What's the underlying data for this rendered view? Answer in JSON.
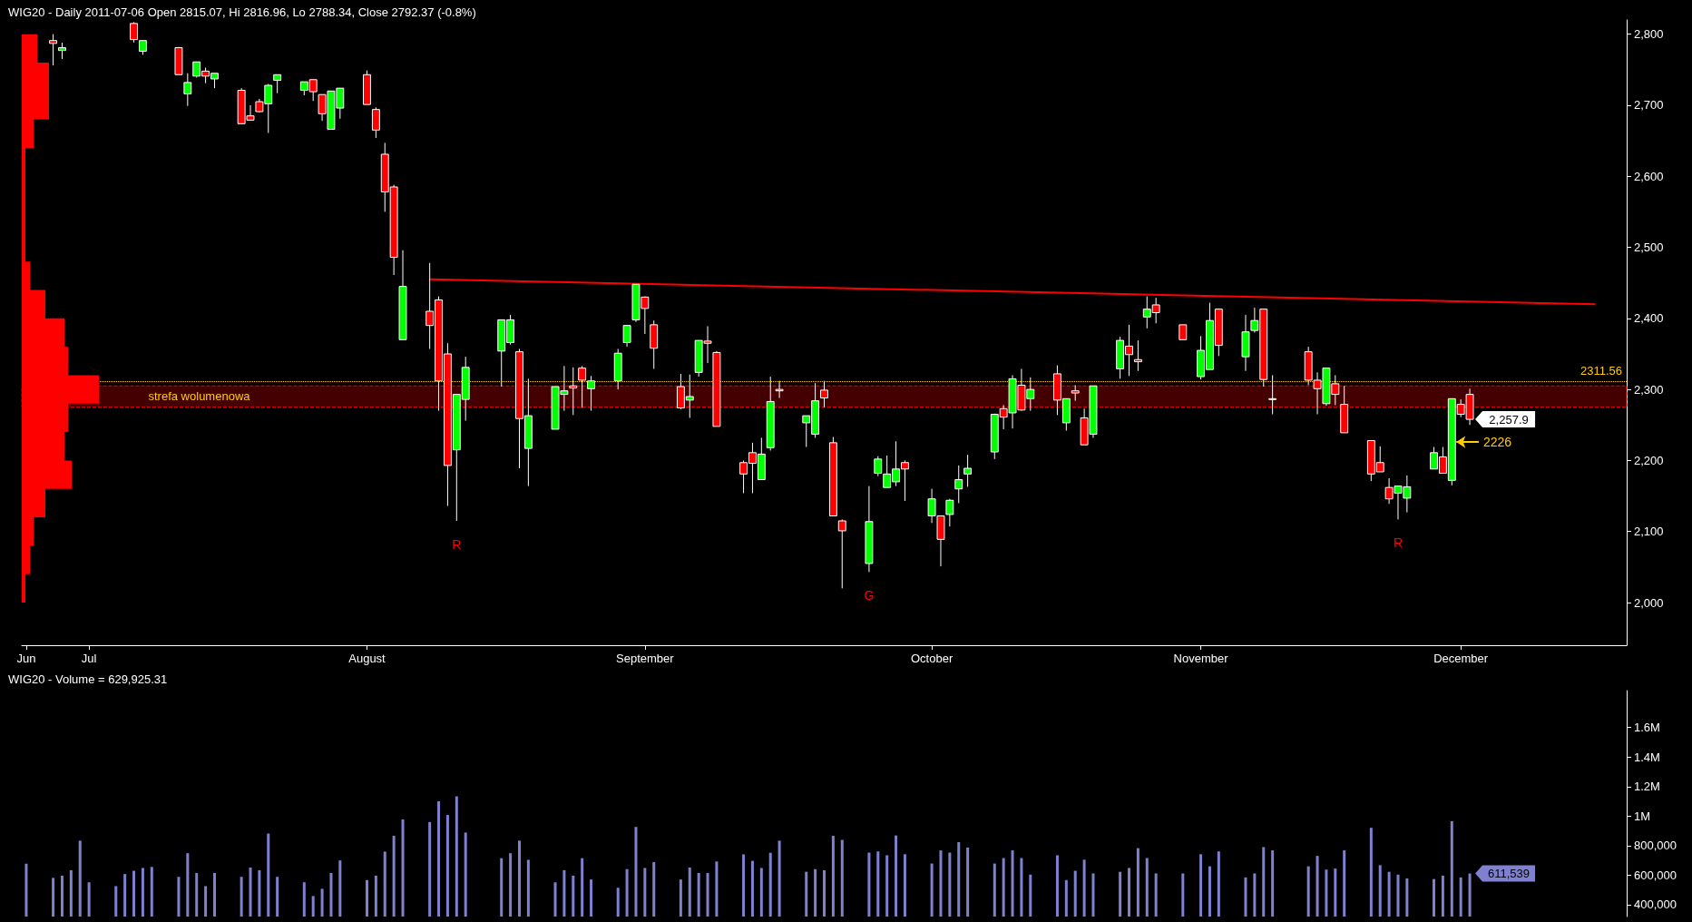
{
  "chart_data": [
    {
      "type": "candlestick",
      "title": "WIG20 - Daily 2011-07-06 Open 2815.07, Hi 2816.96, Lo 2788.34, Close 2792.37 (-0.8%)",
      "x": [
        "2011-06-27",
        "2011-06-28",
        "2011-07-06",
        "2011-07-07",
        "2011-07-11",
        "2011-07-12",
        "2011-07-13",
        "2011-07-14",
        "2011-07-15",
        "2011-07-18",
        "2011-07-19",
        "2011-07-20",
        "2011-07-21",
        "2011-07-22",
        "2011-07-25",
        "2011-07-26",
        "2011-07-27",
        "2011-07-28",
        "2011-07-29",
        "2011-08-01",
        "2011-08-02",
        "2011-08-03",
        "2011-08-04",
        "2011-08-05",
        "2011-08-08",
        "2011-08-09",
        "2011-08-10",
        "2011-08-11",
        "2011-08-12",
        "2011-08-16",
        "2011-08-17",
        "2011-08-18",
        "2011-08-19",
        "2011-08-22",
        "2011-08-23",
        "2011-08-24",
        "2011-08-25",
        "2011-08-26",
        "2011-08-29",
        "2011-08-30",
        "2011-08-31",
        "2011-09-01",
        "2011-09-02",
        "2011-09-05",
        "2011-09-06",
        "2011-09-07",
        "2011-09-08",
        "2011-09-09",
        "2011-09-12",
        "2011-09-13",
        "2011-09-14",
        "2011-09-15",
        "2011-09-16",
        "2011-09-19",
        "2011-09-20",
        "2011-09-21",
        "2011-09-22",
        "2011-09-23",
        "2011-09-26",
        "2011-09-27",
        "2011-09-28",
        "2011-09-29",
        "2011-09-30",
        "2011-10-03",
        "2011-10-04",
        "2011-10-05",
        "2011-10-06",
        "2011-10-07",
        "2011-10-10",
        "2011-10-11",
        "2011-10-12",
        "2011-10-13",
        "2011-10-14",
        "2011-10-17",
        "2011-10-18",
        "2011-10-19",
        "2011-10-20",
        "2011-10-21",
        "2011-10-24",
        "2011-10-25",
        "2011-10-26",
        "2011-10-27",
        "2011-10-28",
        "2011-10-31",
        "2011-11-02",
        "2011-11-03",
        "2011-11-04",
        "2011-11-07",
        "2011-11-08",
        "2011-11-09",
        "2011-11-10",
        "2011-11-14",
        "2011-11-15",
        "2011-11-16",
        "2011-11-17",
        "2011-11-18",
        "2011-11-21",
        "2011-11-22",
        "2011-11-23",
        "2011-11-24",
        "2011-11-25",
        "2011-11-28",
        "2011-11-29",
        "2011-11-30",
        "2011-12-01",
        "2011-12-02"
      ],
      "xlim": [
        "2011-06-24",
        "2011-12-19"
      ],
      "xticks": [
        {
          "value": "2011-06-24",
          "label": "Jun"
        },
        {
          "value": "2011-07-01",
          "label": "Jul"
        },
        {
          "value": "2011-08-01",
          "label": "August"
        },
        {
          "value": "2011-09-01",
          "label": "September"
        },
        {
          "value": "2011-10-03",
          "label": "October"
        },
        {
          "value": "2011-11-02",
          "label": "November"
        },
        {
          "value": "2011-12-01",
          "label": "December"
        }
      ],
      "ylim": [
        1940,
        2820
      ],
      "yticks": [
        {
          "value": 2000,
          "label": "2,000"
        },
        {
          "value": 2100,
          "label": "2,100"
        },
        {
          "value": 2200,
          "label": "2,200"
        },
        {
          "value": 2300,
          "label": "2,300"
        },
        {
          "value": 2400,
          "label": "2,400"
        },
        {
          "value": 2500,
          "label": "2,500"
        },
        {
          "value": 2600,
          "label": "2,600"
        },
        {
          "value": 2700,
          "label": "2,700"
        },
        {
          "value": 2800,
          "label": "2,800"
        }
      ],
      "series": [
        {
          "type": "candlestick",
          "ohlc": [
            [
              2791,
              2800,
              2756,
              2787
            ],
            [
              2777,
              2788,
              2765,
              2781
            ],
            [
              2815.07,
              2816.96,
              2788.34,
              2792.37
            ],
            [
              2776,
              2791,
              2771,
              2791
            ],
            [
              2781,
              2782,
              2743,
              2743
            ],
            [
              2716,
              2745,
              2699,
              2732
            ],
            [
              2741,
              2761,
              2739,
              2761
            ],
            [
              2748,
              2753,
              2731,
              2741
            ],
            [
              2737,
              2745,
              2724,
              2745
            ],
            [
              2721,
              2724,
              2674,
              2674
            ],
            [
              2685,
              2700,
              2679,
              2679
            ],
            [
              2705,
              2709,
              2690,
              2691
            ],
            [
              2702,
              2730,
              2661,
              2728
            ],
            [
              2735,
              2743,
              2717,
              2743
            ],
            [
              2721,
              2733,
              2714,
              2733
            ],
            [
              2736,
              2736,
              2706,
              2719
            ],
            [
              2715,
              2715,
              2678,
              2688
            ],
            [
              2666,
              2720,
              2666,
              2720
            ],
            [
              2696,
              2724,
              2681,
              2724
            ],
            [
              2743,
              2749,
              2701,
              2701
            ],
            [
              2694,
              2697,
              2654,
              2665
            ],
            [
              2631,
              2647,
              2550,
              2578
            ],
            [
              2585,
              2588,
              2461,
              2486
            ],
            [
              2370,
              2496,
              2370,
              2445
            ],
            [
              2410,
              2478,
              2357,
              2390
            ],
            [
              2426,
              2431,
              2270,
              2312
            ],
            [
              2350,
              2365,
              2136,
              2193
            ],
            [
              2215,
              2293,
              2115,
              2293
            ],
            [
              2286,
              2346,
              2256,
              2331
            ],
            [
              2354,
              2398,
              2304,
              2398
            ],
            [
              2366,
              2405,
              2363,
              2398
            ],
            [
              2353,
              2357,
              2189,
              2259
            ],
            [
              2217,
              2315,
              2164,
              2263
            ],
            [
              2244,
              2304,
              2244,
              2304
            ],
            [
              2293,
              2333,
              2270,
              2298
            ],
            [
              2305,
              2331,
              2264,
              2302
            ],
            [
              2330,
              2333,
              2274,
              2313
            ],
            [
              2301,
              2319,
              2270,
              2312
            ],
            [
              2312,
              2357,
              2300,
              2351
            ],
            [
              2366,
              2390,
              2360,
              2390
            ],
            [
              2398,
              2448,
              2395,
              2448
            ],
            [
              2430,
              2431,
              2378,
              2414
            ],
            [
              2391,
              2397,
              2329,
              2358
            ],
            [
              2304,
              2322,
              2272,
              2274
            ],
            [
              2285,
              2321,
              2260,
              2290
            ],
            [
              2324,
              2369,
              2318,
              2369
            ],
            [
              2368,
              2389,
              2337,
              2365
            ],
            [
              2352,
              2354,
              2248,
              2248
            ],
            [
              2197,
              2200,
              2154,
              2181
            ],
            [
              2211,
              2225,
              2154,
              2196
            ],
            [
              2173,
              2232,
              2173,
              2209
            ],
            [
              2218,
              2318,
              2214,
              2283
            ],
            [
              2300,
              2312,
              2288,
              2298
            ],
            [
              2253,
              2263,
              2219,
              2263
            ],
            [
              2237,
              2309,
              2232,
              2284
            ],
            [
              2299,
              2312,
              2275,
              2288
            ],
            [
              2225,
              2233,
              2122,
              2122
            ],
            [
              2115,
              2117,
              2020,
              2101
            ],
            [
              2055,
              2164,
              2043,
              2114
            ],
            [
              2182,
              2206,
              2178,
              2202
            ],
            [
              2162,
              2207,
              2162,
              2181
            ],
            [
              2170,
              2227,
              2164,
              2188
            ],
            [
              2197,
              2200,
              2143,
              2188
            ],
            [
              2122,
              2160,
              2112,
              2146
            ],
            [
              2122,
              2122,
              2051,
              2089
            ],
            [
              2124,
              2146,
              2107,
              2144
            ],
            [
              2160,
              2193,
              2140,
              2173
            ],
            [
              2181,
              2208,
              2163,
              2189
            ],
            [
              2212,
              2266,
              2202,
              2265
            ],
            [
              2273,
              2278,
              2244,
              2261
            ],
            [
              2267,
              2320,
              2245,
              2315
            ],
            [
              2306,
              2329,
              2270,
              2271
            ],
            [
              2287,
              2317,
              2270,
              2300
            ],
            [
              2322,
              2334,
              2264,
              2285
            ],
            [
              2253,
              2287,
              2242,
              2287
            ],
            [
              2298,
              2306,
              2284,
              2295
            ],
            [
              2260,
              2273,
              2222,
              2222
            ],
            [
              2237,
              2305,
              2232,
              2305
            ],
            [
              2329,
              2374,
              2315,
              2369
            ],
            [
              2361,
              2391,
              2319,
              2349
            ],
            [
              2342,
              2369,
              2326,
              2339
            ],
            [
              2402,
              2431,
              2386,
              2413
            ],
            [
              2419,
              2429,
              2393,
              2408
            ],
            [
              2391,
              2391,
              2370,
              2370
            ],
            [
              2318,
              2375,
              2314,
              2355
            ],
            [
              2328,
              2422,
              2328,
              2397
            ],
            [
              2413,
              2414,
              2347,
              2362
            ],
            [
              2346,
              2405,
              2326,
              2381
            ],
            [
              2383,
              2415,
              2380,
              2397
            ],
            [
              2413,
              2413,
              2304,
              2314
            ],
            [
              2287,
              2320,
              2265,
              2287
            ],
            [
              2353,
              2360,
              2306,
              2313
            ],
            [
              2313,
              2324,
              2265,
              2301
            ],
            [
              2280,
              2330,
              2277,
              2330
            ],
            [
              2308,
              2320,
              2278,
              2293
            ],
            [
              2279,
              2305,
              2239,
              2239
            ],
            [
              2228,
              2228,
              2171,
              2181
            ],
            [
              2197,
              2220,
              2184,
              2184
            ],
            [
              2162,
              2175,
              2139,
              2146
            ],
            [
              2154,
              2164,
              2117,
              2164
            ],
            [
              2147,
              2179,
              2127,
              2163
            ],
            [
              2188,
              2219,
              2188,
              2211
            ],
            [
              2205,
              2219,
              2182,
              2182
            ],
            [
              2172,
              2287,
              2165,
              2287
            ],
            [
              2279,
              2286,
              2261,
              2265
            ],
            [
              2293,
              2301,
              2250,
              2257.9
            ]
          ]
        },
        {
          "type": "line",
          "x": [
            "2011-08-08",
            "2011-12-16"
          ],
          "values": [
            2455,
            2420
          ],
          "color": "#ff0000"
        }
      ],
      "bands": [
        {
          "axis": "y",
          "from": 2275,
          "to": 2305,
          "label": "strefa wolumenowa",
          "color": "#440000"
        }
      ],
      "ref_lines": [
        {
          "axis": "y",
          "value": 2311.56,
          "label": "2311.56",
          "color": "#ffcc00",
          "line_style": "dotted"
        }
      ],
      "annotations": [
        {
          "text": "R",
          "x": "2011-08-11",
          "y": 2115
        },
        {
          "text": "G",
          "x": "2011-09-26",
          "y": 2043
        },
        {
          "text": "R",
          "x": "2011-11-24",
          "y": 2117
        },
        {
          "text": "2226",
          "x": "2011-11-30",
          "y": 2226
        },
        {
          "text": "2,257.9",
          "x": "2011-12-02",
          "y": 2257.9
        }
      ]
    },
    {
      "type": "bar",
      "title": "WIG20 - Volume = 629,925.31",
      "color": "#8080d0",
      "tick_labels": "y",
      "x": [
        "2011-06-24",
        "2011-06-27",
        "2011-06-28",
        "2011-06-29",
        "2011-06-30",
        "2011-07-01",
        "2011-07-04",
        "2011-07-05",
        "2011-07-06",
        "2011-07-07",
        "2011-07-08",
        "2011-07-11",
        "2011-07-12",
        "2011-07-13",
        "2011-07-14",
        "2011-07-15",
        "2011-07-18",
        "2011-07-19",
        "2011-07-20",
        "2011-07-21",
        "2011-07-22",
        "2011-07-25",
        "2011-07-26",
        "2011-07-27",
        "2011-07-28",
        "2011-07-29",
        "2011-08-01",
        "2011-08-02",
        "2011-08-03",
        "2011-08-04",
        "2011-08-05",
        "2011-08-08",
        "2011-08-09",
        "2011-08-10",
        "2011-08-11",
        "2011-08-12",
        "2011-08-16",
        "2011-08-17",
        "2011-08-18",
        "2011-08-19",
        "2011-08-22",
        "2011-08-23",
        "2011-08-24",
        "2011-08-25",
        "2011-08-26",
        "2011-08-29",
        "2011-08-30",
        "2011-08-31",
        "2011-09-01",
        "2011-09-02",
        "2011-09-05",
        "2011-09-06",
        "2011-09-07",
        "2011-09-08",
        "2011-09-09",
        "2011-09-12",
        "2011-09-13",
        "2011-09-14",
        "2011-09-15",
        "2011-09-16",
        "2011-09-19",
        "2011-09-20",
        "2011-09-21",
        "2011-09-22",
        "2011-09-23",
        "2011-09-26",
        "2011-09-27",
        "2011-09-28",
        "2011-09-29",
        "2011-09-30",
        "2011-10-03",
        "2011-10-04",
        "2011-10-05",
        "2011-10-06",
        "2011-10-07",
        "2011-10-10",
        "2011-10-11",
        "2011-10-12",
        "2011-10-13",
        "2011-10-14",
        "2011-10-17",
        "2011-10-18",
        "2011-10-19",
        "2011-10-20",
        "2011-10-21",
        "2011-10-24",
        "2011-10-25",
        "2011-10-26",
        "2011-10-27",
        "2011-10-28",
        "2011-10-31",
        "2011-11-02",
        "2011-11-03",
        "2011-11-04",
        "2011-11-07",
        "2011-11-08",
        "2011-11-09",
        "2011-11-10",
        "2011-11-14",
        "2011-11-15",
        "2011-11-16",
        "2011-11-17",
        "2011-11-18",
        "2011-11-21",
        "2011-11-22",
        "2011-11-23",
        "2011-11-24",
        "2011-11-25",
        "2011-11-28",
        "2011-11-29",
        "2011-11-30",
        "2011-12-01",
        "2011-12-02"
      ],
      "xlim": [
        "2011-06-24",
        "2011-12-19"
      ],
      "values": [
        678000,
        582000,
        597000,
        634000,
        834000,
        552000,
        526000,
        608000,
        629925.31,
        649000,
        656000,
        589000,
        749000,
        615000,
        526000,
        615000,
        589000,
        652000,
        634000,
        882000,
        589000,
        552000,
        459000,
        508000,
        615000,
        700000,
        567000,
        597000,
        760000,
        867000,
        978000,
        960000,
        1101000,
        1008000,
        1134000,
        889000,
        715000,
        749000,
        834000,
        704000,
        552000,
        634000,
        597000,
        715000,
        571000,
        515000,
        641000,
        927000,
        649000,
        689000,
        571000,
        652000,
        615000,
        615000,
        693000,
        741000,
        697000,
        649000,
        752000,
        834000,
        623000,
        641000,
        634000,
        867000,
        839000,
        753000,
        761000,
        735000,
        869000,
        742000,
        679000,
        768000,
        753000,
        824000,
        787000,
        679000,
        716000,
        768000,
        716000,
        604000,
        735000,
        567000,
        630000,
        705000,
        612000,
        623000,
        649000,
        783000,
        716000,
        612000,
        612000,
        742000,
        660000,
        761000,
        585000,
        612000,
        790000,
        768000,
        660000,
        731000,
        638000,
        645000,
        768000,
        921000,
        668000,
        623000,
        604000,
        578000,
        574000,
        597000,
        966000,
        585000,
        611539
      ],
      "ylim": [
        320000,
        1850000
      ],
      "yticks": [
        {
          "value": 400000,
          "label": "400,000"
        },
        {
          "value": 600000,
          "label": "600,000"
        },
        {
          "value": 800000,
          "label": "800,000"
        },
        {
          "value": 1000000,
          "label": "1M"
        },
        {
          "value": 1200000,
          "label": "1.2M"
        },
        {
          "value": 1400000,
          "label": "1.4M"
        },
        {
          "value": 1600000,
          "label": "1.6M"
        }
      ],
      "annotations": [
        {
          "text": "611,539",
          "x": "2011-12-02",
          "y": 611539
        }
      ]
    }
  ]
}
